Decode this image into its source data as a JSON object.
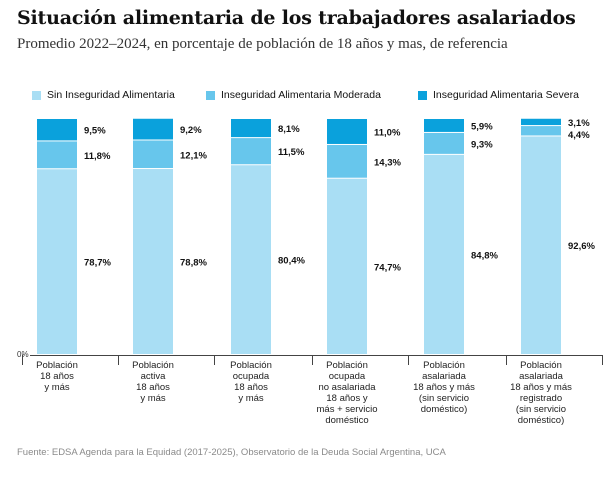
{
  "title": "Situación alimentaria de los trabajadores asalariados",
  "subtitle": "Promedio 2022–2024, en porcentaje de población de 18 años y mas, de referencia",
  "source": "Fuente: EDSA Agenda para la Equidad (2017-2025), Observatorio de la Deuda Social Argentina, UCA",
  "colors": {
    "sin": "#a9def4",
    "moderada": "#67c6ec",
    "severa": "#0aa1dc"
  },
  "chart_data": {
    "type": "bar",
    "stacked": true,
    "ylim": [
      0,
      100
    ],
    "y_tick_label": "0%",
    "legend_position": "top",
    "categories": [
      [
        "Población",
        "18 años",
        "y más"
      ],
      [
        "Población",
        "activa",
        "18 años",
        "y más"
      ],
      [
        "Población",
        "ocupada",
        "18 años",
        "y más"
      ],
      [
        "Población",
        "ocupada",
        "no asalariada",
        "18 años y",
        "más + servicio",
        "doméstico"
      ],
      [
        "Población",
        "asalariada",
        "18 años y más",
        "(sin servicio",
        "doméstico)"
      ],
      [
        "Población",
        "asalariada",
        "18 años y más",
        "registrado",
        "(sin servicio",
        "doméstico)"
      ]
    ],
    "series": [
      {
        "name": "Sin Inseguridad Alimentaria",
        "key": "sin",
        "values": [
          78.7,
          78.8,
          80.4,
          74.7,
          84.8,
          92.6
        ],
        "labels": [
          "78,7%",
          "78,8%",
          "80,4%",
          "74,7%",
          "84,8%",
          "92,6%"
        ]
      },
      {
        "name": "Inseguridad Alimentaria Moderada",
        "key": "moderada",
        "values": [
          11.8,
          12.1,
          11.5,
          14.3,
          9.3,
          4.4
        ],
        "labels": [
          "11,8%",
          "12,1%",
          "11,5%",
          "14,3%",
          "9,3%",
          "4,4%"
        ]
      },
      {
        "name": "Inseguridad Alimentaria Severa",
        "key": "severa",
        "values": [
          9.5,
          9.2,
          8.1,
          11.0,
          5.9,
          3.1
        ],
        "labels": [
          "9,5%",
          "9,2%",
          "8,1%",
          "11,0%",
          "5,9%",
          "3,1%"
        ]
      }
    ]
  }
}
